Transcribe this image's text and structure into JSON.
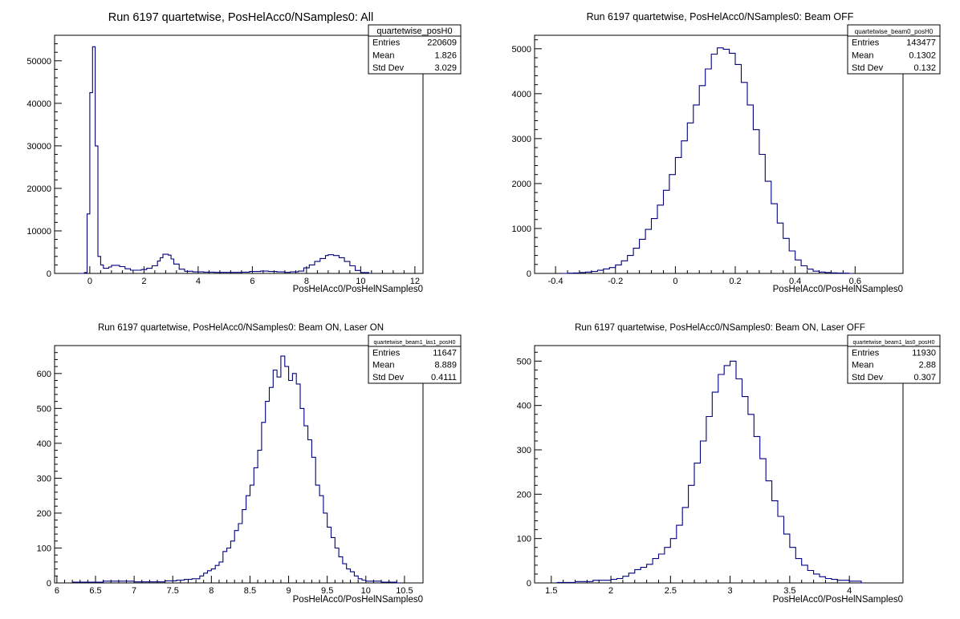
{
  "chart_data": [
    {
      "type": "bar",
      "title": "Run 6197 quartetwise, PosHelAcc0/NSamples0: All",
      "xlabel": "PosHelAcc0/PosHelNSamples0",
      "ylabel": "",
      "xlim": [
        -1.3,
        12.3
      ],
      "ylim": [
        0,
        56000
      ],
      "xticks": [
        "0",
        "2",
        "4",
        "6",
        "8",
        "10",
        "12"
      ],
      "xtick_values": [
        0,
        2,
        4,
        6,
        8,
        10,
        12
      ],
      "yticks": [
        "0",
        "10000",
        "20000",
        "30000",
        "40000",
        "50000"
      ],
      "ytick_values": [
        0,
        10000,
        20000,
        30000,
        40000,
        50000
      ],
      "legend": "top-right",
      "stats": {
        "name": "quartetwise_posH0",
        "rows": [
          {
            "label": "Entries",
            "value": "220609"
          },
          {
            "label": "Mean",
            "value": "1.826"
          },
          {
            "label": "Std Dev",
            "value": "3.029"
          }
        ]
      },
      "bins": [
        [
          -0.4,
          0
        ],
        [
          -0.2,
          200
        ],
        [
          -0.1,
          14000
        ],
        [
          0.0,
          42500
        ],
        [
          0.1,
          53300
        ],
        [
          0.2,
          30000
        ],
        [
          0.3,
          4000
        ],
        [
          0.4,
          2000
        ],
        [
          0.5,
          1200
        ],
        [
          0.7,
          1500
        ],
        [
          0.8,
          1900
        ],
        [
          1.1,
          1600
        ],
        [
          1.3,
          1100
        ],
        [
          1.5,
          750
        ],
        [
          1.7,
          750
        ],
        [
          1.9,
          900
        ],
        [
          2.1,
          1200
        ],
        [
          2.3,
          1800
        ],
        [
          2.5,
          2900
        ],
        [
          2.6,
          3700
        ],
        [
          2.7,
          4500
        ],
        [
          2.9,
          4300
        ],
        [
          3.0,
          3400
        ],
        [
          3.1,
          2200
        ],
        [
          3.3,
          1000
        ],
        [
          3.5,
          500
        ],
        [
          3.8,
          350
        ],
        [
          4.2,
          300
        ],
        [
          4.6,
          250
        ],
        [
          5.0,
          250
        ],
        [
          5.3,
          250
        ],
        [
          5.6,
          300
        ],
        [
          5.9,
          450
        ],
        [
          6.3,
          550
        ],
        [
          6.6,
          450
        ],
        [
          6.9,
          350
        ],
        [
          7.2,
          250
        ],
        [
          7.4,
          350
        ],
        [
          7.7,
          550
        ],
        [
          7.9,
          1300
        ],
        [
          8.1,
          2000
        ],
        [
          8.3,
          2800
        ],
        [
          8.5,
          3500
        ],
        [
          8.7,
          4200
        ],
        [
          8.8,
          4400
        ],
        [
          9.0,
          4200
        ],
        [
          9.2,
          3700
        ],
        [
          9.4,
          2800
        ],
        [
          9.6,
          1800
        ],
        [
          9.8,
          700
        ],
        [
          10.0,
          200
        ],
        [
          10.3,
          0
        ]
      ]
    },
    {
      "type": "bar",
      "title": "Run 6197 quartetwise, PosHelAcc0/NSamples0: Beam OFF",
      "xlabel": "PosHelAcc0/PosHelNSamples0",
      "ylabel": "",
      "xlim": [
        -0.47,
        0.76
      ],
      "ylim": [
        0,
        5300
      ],
      "xticks": [
        "-0.4",
        "-0.2",
        "0",
        "0.2",
        "0.4",
        "0.6"
      ],
      "xtick_values": [
        -0.4,
        -0.2,
        0,
        0.2,
        0.4,
        0.6
      ],
      "yticks": [
        "0",
        "1000",
        "2000",
        "3000",
        "4000",
        "5000"
      ],
      "ytick_values": [
        0,
        1000,
        2000,
        3000,
        4000,
        5000
      ],
      "legend": "top-right",
      "stats": {
        "name": "quartetwise_beam0_posH0",
        "rows": [
          {
            "label": "Entries",
            "value": "143477"
          },
          {
            "label": "Mean",
            "value": "0.1302"
          },
          {
            "label": "Std Dev",
            "value": "0.132"
          }
        ]
      },
      "bins": [
        [
          -0.38,
          0
        ],
        [
          -0.36,
          5
        ],
        [
          -0.34,
          10
        ],
        [
          -0.32,
          20
        ],
        [
          -0.3,
          30
        ],
        [
          -0.28,
          45
        ],
        [
          -0.26,
          70
        ],
        [
          -0.24,
          100
        ],
        [
          -0.22,
          130
        ],
        [
          -0.2,
          190
        ],
        [
          -0.18,
          280
        ],
        [
          -0.16,
          400
        ],
        [
          -0.14,
          560
        ],
        [
          -0.12,
          760
        ],
        [
          -0.1,
          980
        ],
        [
          -0.08,
          1220
        ],
        [
          -0.06,
          1520
        ],
        [
          -0.04,
          1850
        ],
        [
          -0.02,
          2200
        ],
        [
          0.0,
          2580
        ],
        [
          0.02,
          2950
        ],
        [
          0.04,
          3350
        ],
        [
          0.06,
          3750
        ],
        [
          0.08,
          4180
        ],
        [
          0.1,
          4550
        ],
        [
          0.12,
          4880
        ],
        [
          0.14,
          5020
        ],
        [
          0.16,
          4990
        ],
        [
          0.18,
          4900
        ],
        [
          0.2,
          4650
        ],
        [
          0.22,
          4250
        ],
        [
          0.24,
          3750
        ],
        [
          0.26,
          3200
        ],
        [
          0.28,
          2650
        ],
        [
          0.3,
          2050
        ],
        [
          0.32,
          1550
        ],
        [
          0.34,
          1120
        ],
        [
          0.36,
          780
        ],
        [
          0.38,
          500
        ],
        [
          0.4,
          300
        ],
        [
          0.42,
          170
        ],
        [
          0.44,
          95
        ],
        [
          0.46,
          50
        ],
        [
          0.48,
          30
        ],
        [
          0.5,
          20
        ],
        [
          0.52,
          12
        ],
        [
          0.54,
          8
        ],
        [
          0.56,
          5
        ],
        [
          0.58,
          0
        ]
      ]
    },
    {
      "type": "bar",
      "title": "Run 6197 quartetwise, PosHelAcc0/NSamples0: Beam ON, Laser ON",
      "xlabel": "PosHelAcc0/PosHelNSamples0",
      "ylabel": "",
      "xlim": [
        5.97,
        10.74
      ],
      "ylim": [
        0,
        680
      ],
      "xticks": [
        "6",
        "6.5",
        "7",
        "7.5",
        "8",
        "8.5",
        "9",
        "9.5",
        "10",
        "10.5"
      ],
      "xtick_values": [
        6,
        6.5,
        7,
        7.5,
        8,
        8.5,
        9,
        9.5,
        10,
        10.5
      ],
      "yticks": [
        "0",
        "100",
        "200",
        "300",
        "400",
        "500",
        "600"
      ],
      "ytick_values": [
        0,
        100,
        200,
        300,
        400,
        500,
        600
      ],
      "legend": "top-right",
      "stats": {
        "name": "quartetwise_beam1_las1_posH0",
        "rows": [
          {
            "label": "Entries",
            "value": "11647"
          },
          {
            "label": "Mean",
            "value": "8.889"
          },
          {
            "label": "Std Dev",
            "value": "0.4111"
          }
        ]
      },
      "bins": [
        [
          6.2,
          2
        ],
        [
          6.6,
          5
        ],
        [
          7.0,
          3
        ],
        [
          7.4,
          6
        ],
        [
          7.55,
          8
        ],
        [
          7.65,
          10
        ],
        [
          7.75,
          12
        ],
        [
          7.85,
          20
        ],
        [
          7.9,
          28
        ],
        [
          7.95,
          35
        ],
        [
          8.0,
          40
        ],
        [
          8.05,
          50
        ],
        [
          8.1,
          60
        ],
        [
          8.15,
          90
        ],
        [
          8.2,
          100
        ],
        [
          8.25,
          120
        ],
        [
          8.3,
          150
        ],
        [
          8.35,
          170
        ],
        [
          8.4,
          210
        ],
        [
          8.45,
          250
        ],
        [
          8.5,
          280
        ],
        [
          8.55,
          330
        ],
        [
          8.6,
          380
        ],
        [
          8.65,
          460
        ],
        [
          8.7,
          520
        ],
        [
          8.75,
          560
        ],
        [
          8.8,
          610
        ],
        [
          8.85,
          590
        ],
        [
          8.9,
          650
        ],
        [
          8.95,
          620
        ],
        [
          9.0,
          580
        ],
        [
          9.05,
          600
        ],
        [
          9.1,
          570
        ],
        [
          9.15,
          500
        ],
        [
          9.2,
          450
        ],
        [
          9.25,
          410
        ],
        [
          9.3,
          360
        ],
        [
          9.35,
          280
        ],
        [
          9.4,
          250
        ],
        [
          9.45,
          200
        ],
        [
          9.5,
          160
        ],
        [
          9.55,
          130
        ],
        [
          9.6,
          100
        ],
        [
          9.65,
          75
        ],
        [
          9.7,
          55
        ],
        [
          9.75,
          40
        ],
        [
          9.8,
          32
        ],
        [
          9.85,
          20
        ],
        [
          9.9,
          12
        ],
        [
          9.95,
          8
        ],
        [
          10.0,
          5
        ],
        [
          10.2,
          2
        ],
        [
          10.4,
          0
        ]
      ]
    },
    {
      "type": "bar",
      "title": "Run 6197 quartetwise, PosHelAcc0/NSamples0: Beam ON, Laser OFF",
      "xlabel": "PosHelAcc0/PosHelNSamples0",
      "ylabel": "",
      "xlim": [
        1.36,
        4.45
      ],
      "ylim": [
        0,
        535
      ],
      "xticks": [
        "1.5",
        "2",
        "2.5",
        "3",
        "3.5",
        "4"
      ],
      "xtick_values": [
        1.5,
        2,
        2.5,
        3,
        3.5,
        4
      ],
      "yticks": [
        "0",
        "100",
        "200",
        "300",
        "400",
        "500"
      ],
      "ytick_values": [
        0,
        100,
        200,
        300,
        400,
        500
      ],
      "legend": "top-right",
      "stats": {
        "name": "quartetwise_beam1_las0_posH0",
        "rows": [
          {
            "label": "Entries",
            "value": "11930"
          },
          {
            "label": "Mean",
            "value": "2.88"
          },
          {
            "label": "Std Dev",
            "value": "0.307"
          }
        ]
      },
      "bins": [
        [
          1.55,
          1
        ],
        [
          1.7,
          3
        ],
        [
          1.85,
          6
        ],
        [
          2.0,
          8
        ],
        [
          2.05,
          10
        ],
        [
          2.1,
          15
        ],
        [
          2.15,
          22
        ],
        [
          2.2,
          30
        ],
        [
          2.25,
          35
        ],
        [
          2.3,
          42
        ],
        [
          2.35,
          55
        ],
        [
          2.4,
          65
        ],
        [
          2.45,
          80
        ],
        [
          2.5,
          100
        ],
        [
          2.55,
          130
        ],
        [
          2.6,
          170
        ],
        [
          2.65,
          220
        ],
        [
          2.7,
          270
        ],
        [
          2.75,
          320
        ],
        [
          2.8,
          375
        ],
        [
          2.85,
          430
        ],
        [
          2.9,
          470
        ],
        [
          2.95,
          490
        ],
        [
          3.0,
          500
        ],
        [
          3.05,
          460
        ],
        [
          3.1,
          420
        ],
        [
          3.15,
          380
        ],
        [
          3.2,
          330
        ],
        [
          3.25,
          280
        ],
        [
          3.3,
          230
        ],
        [
          3.35,
          185
        ],
        [
          3.4,
          150
        ],
        [
          3.45,
          110
        ],
        [
          3.5,
          80
        ],
        [
          3.55,
          55
        ],
        [
          3.6,
          40
        ],
        [
          3.65,
          28
        ],
        [
          3.7,
          20
        ],
        [
          3.75,
          14
        ],
        [
          3.8,
          10
        ],
        [
          3.85,
          8
        ],
        [
          3.9,
          6
        ],
        [
          4.0,
          4
        ],
        [
          4.1,
          0
        ]
      ]
    }
  ]
}
